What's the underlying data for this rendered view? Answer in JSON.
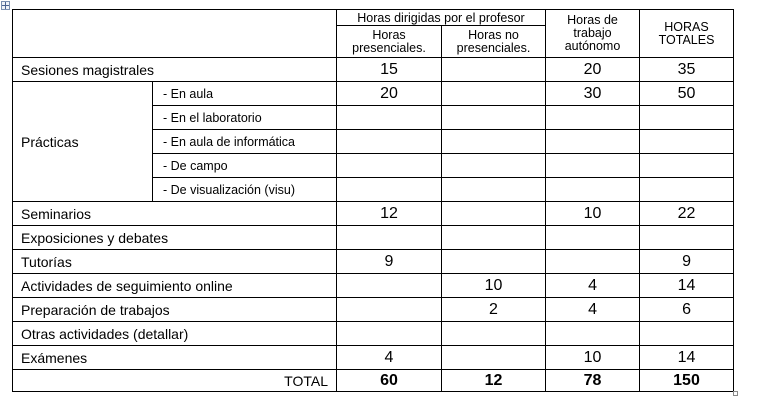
{
  "headers": {
    "group": "Horas dirigidas por el profesor",
    "presenciales": "Horas presenciales.",
    "no_presenciales": "Horas no presenciales.",
    "autonomo": "Horas de trabajo autónomo",
    "totales": "HORAS TOTALES"
  },
  "rows": [
    {
      "label": "Sesiones magistrales",
      "presenciales": "15",
      "no_presenciales": "",
      "autonomo": "20",
      "totales": "35"
    },
    {
      "label": "Seminarios",
      "presenciales": "12",
      "no_presenciales": "",
      "autonomo": "10",
      "totales": "22"
    },
    {
      "label": "Exposiciones y debates",
      "presenciales": "",
      "no_presenciales": "",
      "autonomo": "",
      "totales": ""
    },
    {
      "label": "Tutorías",
      "presenciales": "9",
      "no_presenciales": "",
      "autonomo": "",
      "totales": "9"
    },
    {
      "label": "Actividades de seguimiento online",
      "presenciales": "",
      "no_presenciales": "10",
      "autonomo": "4",
      "totales": "14"
    },
    {
      "label": "Preparación de trabajos",
      "presenciales": "",
      "no_presenciales": "2",
      "autonomo": "4",
      "totales": "6"
    },
    {
      "label": "Otras actividades (detallar)",
      "presenciales": "",
      "no_presenciales": "",
      "autonomo": "",
      "totales": ""
    },
    {
      "label": "Exámenes",
      "presenciales": "4",
      "no_presenciales": "",
      "autonomo": "10",
      "totales": "14"
    }
  ],
  "practicas": {
    "label": "Prácticas",
    "subrows": [
      {
        "label": "- En aula",
        "presenciales": "20",
        "no_presenciales": "",
        "autonomo": "30",
        "totales": "50"
      },
      {
        "label": "- En el laboratorio",
        "presenciales": "",
        "no_presenciales": "",
        "autonomo": "",
        "totales": ""
      },
      {
        "label": "- En aula de informática",
        "presenciales": "",
        "no_presenciales": "",
        "autonomo": "",
        "totales": ""
      },
      {
        "label": "- De campo",
        "presenciales": "",
        "no_presenciales": "",
        "autonomo": "",
        "totales": ""
      },
      {
        "label": "- De visualización (visu)",
        "presenciales": "",
        "no_presenciales": "",
        "autonomo": "",
        "totales": ""
      }
    ]
  },
  "total": {
    "label": "TOTAL",
    "presenciales": "60",
    "no_presenciales": "12",
    "autonomo": "78",
    "totales": "150"
  }
}
